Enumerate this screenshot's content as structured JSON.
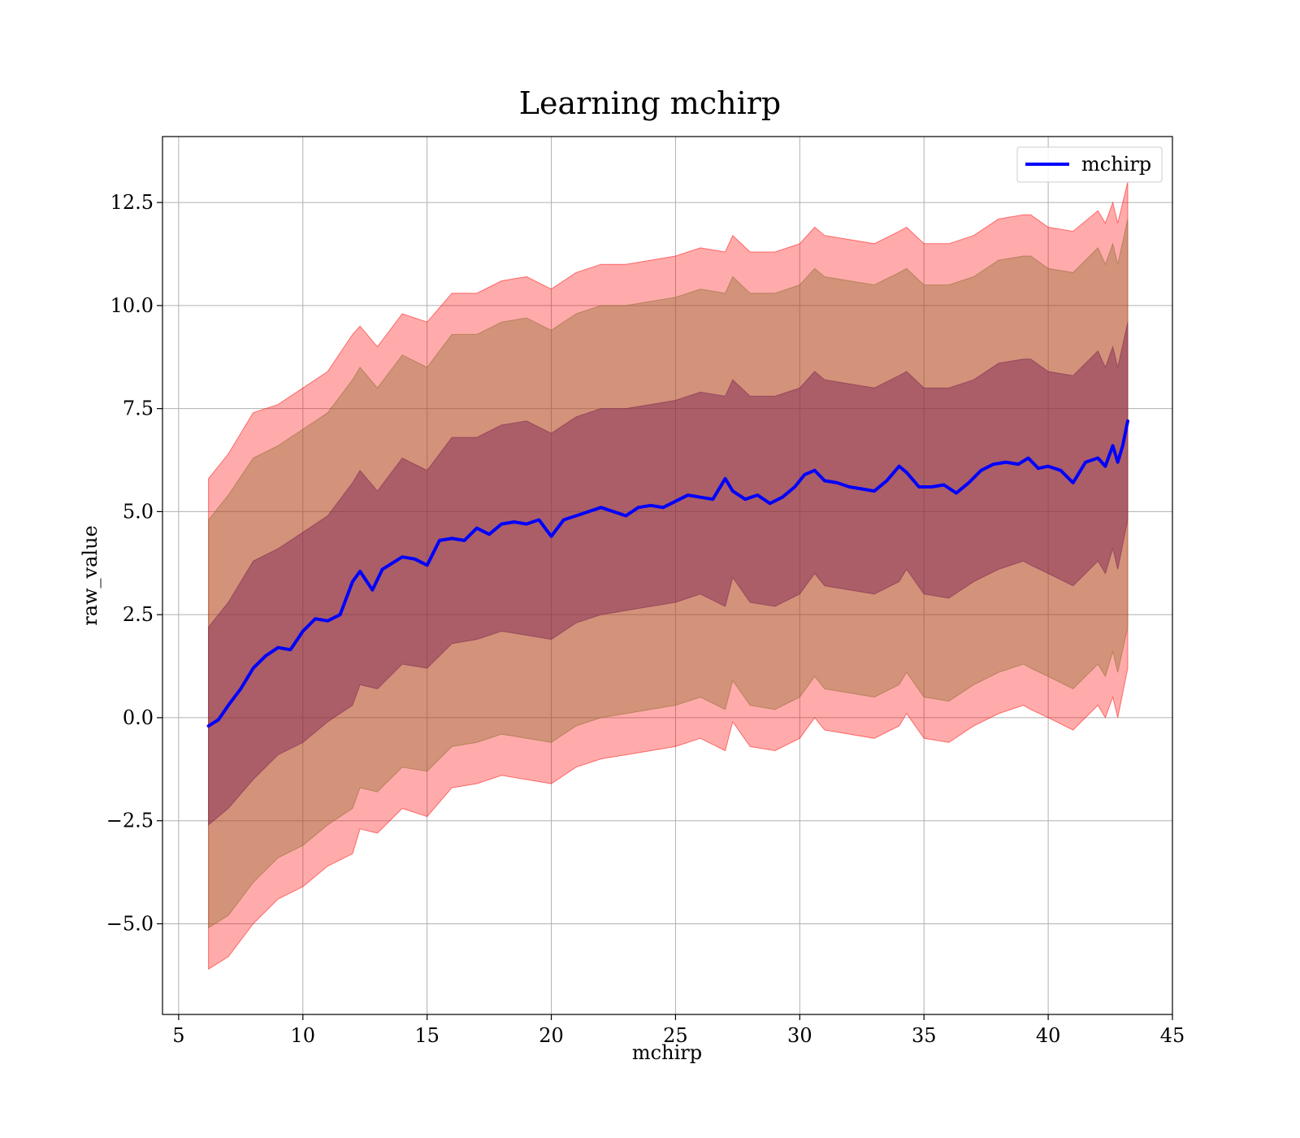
{
  "chart_data": {
    "type": "line",
    "title": "Learning mchirp",
    "xlabel": "mchirp",
    "ylabel": "raw_value",
    "xlim": [
      4.35,
      45.0
    ],
    "ylim": [
      -7.2,
      14.1
    ],
    "xticks": [
      5,
      10,
      15,
      20,
      25,
      30,
      35,
      40,
      45
    ],
    "xtick_labels": [
      "5",
      "10",
      "15",
      "20",
      "25",
      "30",
      "35",
      "40",
      "45"
    ],
    "yticks": [
      -5.0,
      -2.5,
      0.0,
      2.5,
      5.0,
      7.5,
      10.0,
      12.5
    ],
    "ytick_labels": [
      "−5.0",
      "−2.5",
      "0.0",
      "2.5",
      "5.0",
      "7.5",
      "10.0",
      "12.5"
    ],
    "grid": true,
    "legend_position": "top-right",
    "series": [
      {
        "name": "mchirp",
        "color": "#0000ff",
        "x": [
          6.2,
          6.6,
          7.0,
          7.5,
          8.0,
          8.5,
          9.0,
          9.5,
          10.0,
          10.5,
          11.0,
          11.5,
          12.0,
          12.3,
          12.8,
          13.2,
          13.6,
          14.0,
          14.5,
          15.0,
          15.5,
          16.0,
          16.5,
          17.0,
          17.5,
          18.0,
          18.5,
          19.0,
          19.5,
          20.0,
          20.5,
          21.0,
          21.5,
          22.0,
          22.5,
          23.0,
          23.5,
          24.0,
          24.5,
          25.0,
          25.5,
          26.0,
          26.5,
          27.0,
          27.3,
          27.8,
          28.3,
          28.8,
          29.3,
          29.8,
          30.2,
          30.6,
          31.0,
          31.5,
          32.0,
          32.5,
          33.0,
          33.5,
          34.0,
          34.3,
          34.8,
          35.3,
          35.8,
          36.3,
          36.8,
          37.3,
          37.8,
          38.3,
          38.8,
          39.2,
          39.6,
          40.0,
          40.5,
          41.0,
          41.5,
          42.0,
          42.3,
          42.6,
          42.8,
          43.0,
          43.2
        ],
        "y": [
          -0.2,
          -0.05,
          0.3,
          0.7,
          1.2,
          1.5,
          1.7,
          1.65,
          2.1,
          2.4,
          2.35,
          2.5,
          3.3,
          3.55,
          3.1,
          3.6,
          3.75,
          3.9,
          3.85,
          3.7,
          4.3,
          4.35,
          4.3,
          4.6,
          4.45,
          4.7,
          4.75,
          4.7,
          4.8,
          4.4,
          4.8,
          4.9,
          5.0,
          5.1,
          5.0,
          4.9,
          5.1,
          5.15,
          5.1,
          5.25,
          5.4,
          5.35,
          5.3,
          5.8,
          5.5,
          5.3,
          5.4,
          5.2,
          5.35,
          5.6,
          5.9,
          6.0,
          5.75,
          5.7,
          5.6,
          5.55,
          5.5,
          5.75,
          6.1,
          5.95,
          5.6,
          5.6,
          5.65,
          5.45,
          5.7,
          6.0,
          6.15,
          6.2,
          6.15,
          6.3,
          6.05,
          6.1,
          6.0,
          5.7,
          6.2,
          6.3,
          6.1,
          6.6,
          6.2,
          6.6,
          7.2
        ]
      }
    ],
    "bands": [
      {
        "color": "#ff0000",
        "opacity": 0.33,
        "x": [
          6.2,
          7.0,
          8.0,
          9.0,
          10.0,
          11.0,
          12.0,
          12.3,
          13.0,
          14.0,
          15.0,
          16.0,
          17.0,
          18.0,
          19.0,
          20.0,
          21.0,
          22.0,
          23.0,
          24.0,
          25.0,
          26.0,
          27.0,
          27.3,
          28.0,
          29.0,
          30.0,
          30.6,
          31.0,
          32.0,
          33.0,
          34.0,
          34.3,
          35.0,
          36.0,
          37.0,
          38.0,
          39.0,
          39.3,
          40.0,
          41.0,
          42.0,
          42.3,
          42.6,
          42.8,
          43.2
        ],
        "upper": [
          5.8,
          6.4,
          7.4,
          7.6,
          8.0,
          8.4,
          9.3,
          9.5,
          9.0,
          9.8,
          9.6,
          10.3,
          10.3,
          10.6,
          10.7,
          10.4,
          10.8,
          11.0,
          11.0,
          11.1,
          11.2,
          11.4,
          11.3,
          11.7,
          11.3,
          11.3,
          11.5,
          11.9,
          11.7,
          11.6,
          11.5,
          11.8,
          11.9,
          11.5,
          11.5,
          11.7,
          12.1,
          12.2,
          12.2,
          11.9,
          11.8,
          12.3,
          12.0,
          12.5,
          12.0,
          13.0
        ],
        "lower": [
          -6.1,
          -5.8,
          -5.0,
          -4.4,
          -4.1,
          -3.6,
          -3.3,
          -2.7,
          -2.8,
          -2.2,
          -2.4,
          -1.7,
          -1.6,
          -1.4,
          -1.5,
          -1.6,
          -1.2,
          -1.0,
          -0.9,
          -0.8,
          -0.7,
          -0.5,
          -0.8,
          -0.1,
          -0.7,
          -0.8,
          -0.5,
          0.0,
          -0.3,
          -0.4,
          -0.5,
          -0.2,
          0.1,
          -0.5,
          -0.6,
          -0.2,
          0.1,
          0.3,
          0.2,
          0.0,
          -0.3,
          0.3,
          0.0,
          0.5,
          0.0,
          1.2
        ]
      },
      {
        "color": "#8b6a2b",
        "opacity": 0.38,
        "x": [
          6.2,
          7.0,
          8.0,
          9.0,
          10.0,
          11.0,
          12.0,
          12.3,
          13.0,
          14.0,
          15.0,
          16.0,
          17.0,
          18.0,
          19.0,
          20.0,
          21.0,
          22.0,
          23.0,
          24.0,
          25.0,
          26.0,
          27.0,
          27.3,
          28.0,
          29.0,
          30.0,
          30.6,
          31.0,
          32.0,
          33.0,
          34.0,
          34.3,
          35.0,
          36.0,
          37.0,
          38.0,
          39.0,
          39.3,
          40.0,
          41.0,
          42.0,
          42.3,
          42.6,
          42.8,
          43.2
        ],
        "upper": [
          4.8,
          5.4,
          6.3,
          6.6,
          7.0,
          7.4,
          8.2,
          8.5,
          8.0,
          8.8,
          8.5,
          9.3,
          9.3,
          9.6,
          9.7,
          9.4,
          9.8,
          10.0,
          10.0,
          10.1,
          10.2,
          10.4,
          10.3,
          10.7,
          10.3,
          10.3,
          10.5,
          10.9,
          10.7,
          10.6,
          10.5,
          10.8,
          10.9,
          10.5,
          10.5,
          10.7,
          11.1,
          11.2,
          11.2,
          10.9,
          10.8,
          11.4,
          11.0,
          11.5,
          11.0,
          12.1
        ],
        "lower": [
          -5.1,
          -4.8,
          -4.0,
          -3.4,
          -3.1,
          -2.6,
          -2.2,
          -1.7,
          -1.8,
          -1.2,
          -1.3,
          -0.7,
          -0.6,
          -0.4,
          -0.5,
          -0.6,
          -0.2,
          0.0,
          0.1,
          0.2,
          0.3,
          0.5,
          0.2,
          0.9,
          0.3,
          0.2,
          0.5,
          1.0,
          0.7,
          0.6,
          0.5,
          0.8,
          1.1,
          0.5,
          0.4,
          0.8,
          1.1,
          1.3,
          1.2,
          1.0,
          0.7,
          1.3,
          1.0,
          1.6,
          1.1,
          2.2
        ]
      },
      {
        "color": "#7a1f4f",
        "opacity": 0.45,
        "x": [
          6.2,
          7.0,
          8.0,
          9.0,
          10.0,
          11.0,
          12.0,
          12.3,
          13.0,
          14.0,
          15.0,
          16.0,
          17.0,
          18.0,
          19.0,
          20.0,
          21.0,
          22.0,
          23.0,
          24.0,
          25.0,
          26.0,
          27.0,
          27.3,
          28.0,
          29.0,
          30.0,
          30.6,
          31.0,
          32.0,
          33.0,
          34.0,
          34.3,
          35.0,
          36.0,
          37.0,
          38.0,
          39.0,
          39.3,
          40.0,
          41.0,
          42.0,
          42.3,
          42.6,
          42.8,
          43.2
        ],
        "upper": [
          2.2,
          2.8,
          3.8,
          4.1,
          4.5,
          4.9,
          5.7,
          6.0,
          5.5,
          6.3,
          6.0,
          6.8,
          6.8,
          7.1,
          7.2,
          6.9,
          7.3,
          7.5,
          7.5,
          7.6,
          7.7,
          7.9,
          7.8,
          8.2,
          7.8,
          7.8,
          8.0,
          8.4,
          8.2,
          8.1,
          8.0,
          8.3,
          8.4,
          8.0,
          8.0,
          8.2,
          8.6,
          8.7,
          8.7,
          8.4,
          8.3,
          8.9,
          8.5,
          9.0,
          8.5,
          9.6
        ],
        "lower": [
          -2.6,
          -2.2,
          -1.5,
          -0.9,
          -0.6,
          -0.1,
          0.3,
          0.8,
          0.7,
          1.3,
          1.2,
          1.8,
          1.9,
          2.1,
          2.0,
          1.9,
          2.3,
          2.5,
          2.6,
          2.7,
          2.8,
          3.0,
          2.7,
          3.4,
          2.8,
          2.7,
          3.0,
          3.5,
          3.2,
          3.1,
          3.0,
          3.3,
          3.6,
          3.0,
          2.9,
          3.3,
          3.6,
          3.8,
          3.7,
          3.5,
          3.2,
          3.8,
          3.5,
          4.1,
          3.6,
          4.8
        ]
      }
    ]
  }
}
